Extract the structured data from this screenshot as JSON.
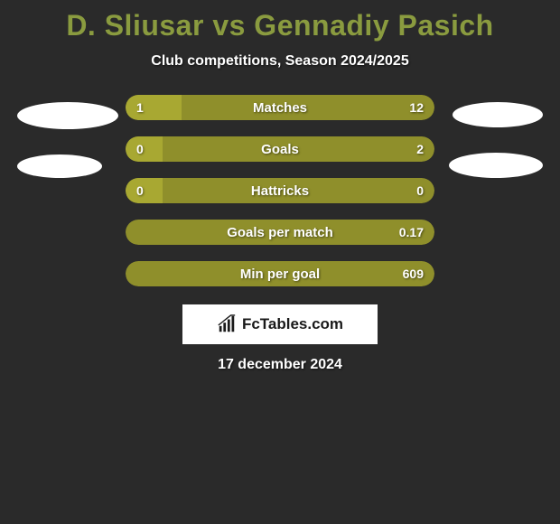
{
  "title": "D. Sliusar vs Gennadiy Pasich",
  "subtitle": "Club competitions, Season 2024/2025",
  "date": "17 december 2024",
  "logo_text": "FcTables.com",
  "colors": {
    "background": "#2a2a2a",
    "accent": "#a8a832",
    "accent_dark": "#8f8f2b",
    "title_color": "#8a9b3f",
    "bar_bg": "#a8a832",
    "text_white": "#ffffff"
  },
  "ellipses": {
    "left": [
      {
        "width": 112,
        "height": 30
      },
      {
        "width": 94,
        "height": 26
      }
    ],
    "right": [
      {
        "width": 100,
        "height": 28
      },
      {
        "width": 104,
        "height": 28
      }
    ]
  },
  "stats": [
    {
      "label": "Matches",
      "left_value": "1",
      "right_value": "12",
      "left_pct": 18,
      "right_pct": 100,
      "left_color": "#a8a832",
      "right_color": "#8f8f2b"
    },
    {
      "label": "Goals",
      "left_value": "0",
      "right_value": "2",
      "left_pct": 12,
      "right_pct": 100,
      "left_color": "#a8a832",
      "right_color": "#8f8f2b"
    },
    {
      "label": "Hattricks",
      "left_value": "0",
      "right_value": "0",
      "left_pct": 12,
      "right_pct": 100,
      "left_color": "#a8a832",
      "right_color": "#8f8f2b"
    },
    {
      "label": "Goals per match",
      "left_value": "",
      "right_value": "0.17",
      "left_pct": 0,
      "right_pct": 100,
      "left_color": "#a8a832",
      "right_color": "#8f8f2b"
    },
    {
      "label": "Min per goal",
      "left_value": "",
      "right_value": "609",
      "left_pct": 0,
      "right_pct": 100,
      "left_color": "#a8a832",
      "right_color": "#8f8f2b"
    }
  ]
}
